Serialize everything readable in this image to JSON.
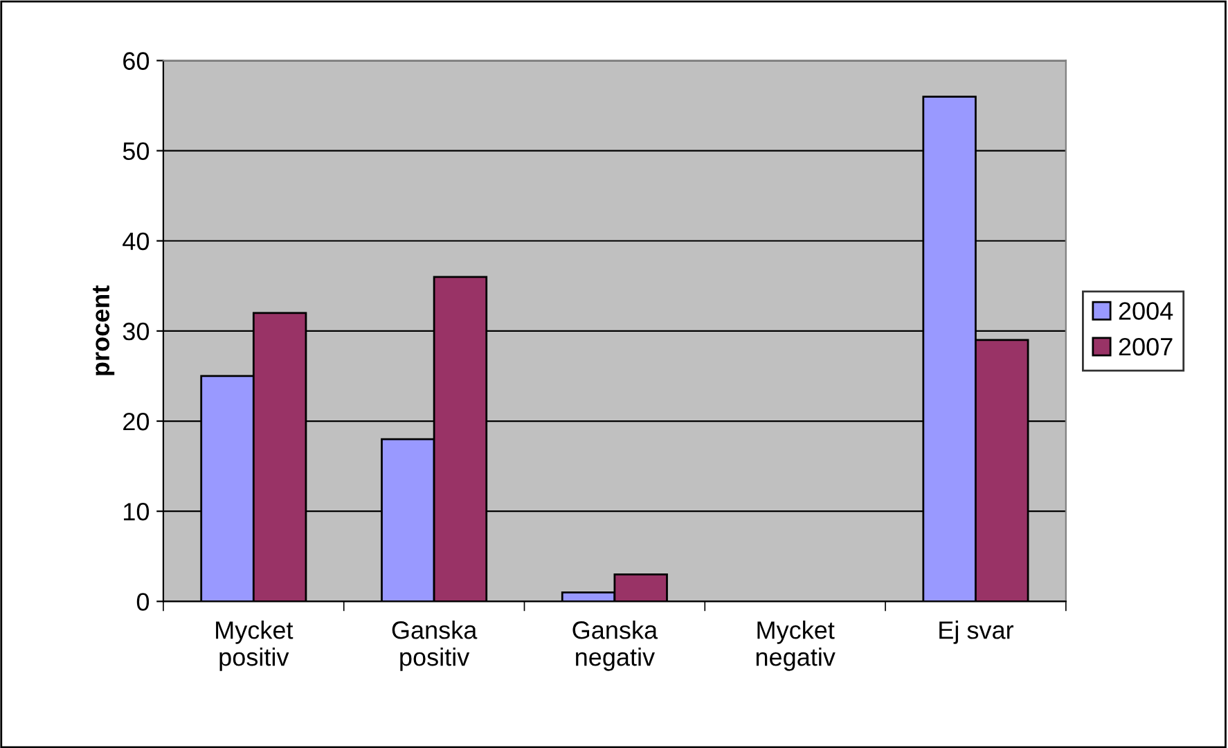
{
  "chart_data": {
    "type": "bar",
    "categories": [
      "Mycket\npositiv",
      "Ganska\npositiv",
      "Ganska\nnegativ",
      "Mycket\nnegativ",
      "Ej svar"
    ],
    "ylabel": "procent",
    "series": [
      {
        "name": "2004",
        "color": "#9999ff",
        "values": [
          25,
          18,
          1,
          0,
          56
        ]
      },
      {
        "name": "2007",
        "color": "#993366",
        "values": [
          32,
          36,
          3,
          0,
          29
        ]
      }
    ],
    "ylim": [
      0,
      60
    ],
    "yticks": [
      0,
      10,
      20,
      30,
      40,
      50,
      60
    ],
    "grid": "y",
    "legend": "right"
  }
}
